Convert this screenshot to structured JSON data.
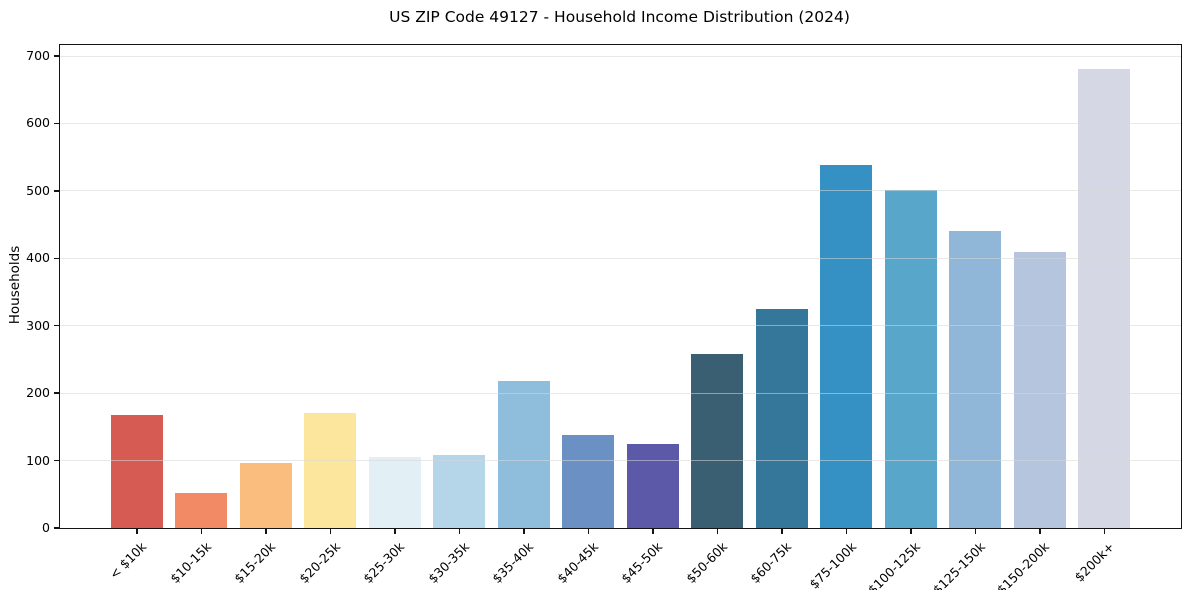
{
  "title": "US ZIP Code 49127 - Household Income Distribution (2024)",
  "chart_data": {
    "type": "bar",
    "title": "US ZIP Code 49127 - Household Income Distribution (2024)",
    "xlabel": "",
    "ylabel": "Households",
    "categories": [
      "< $10k",
      "$10-15k",
      "$15-20k",
      "$20-25k",
      "$25-30k",
      "$30-35k",
      "$35-40k",
      "$40-45k",
      "$45-50k",
      "$50-60k",
      "$60-75k",
      "$75-100k",
      "$100-125k",
      "$125-150k",
      "$150-200k",
      "$200k+"
    ],
    "values": [
      168,
      52,
      96,
      171,
      106,
      108,
      218,
      138,
      125,
      258,
      325,
      539,
      501,
      440,
      409,
      681
    ],
    "bar_colors": [
      "#d65c53",
      "#f28a66",
      "#fbbd7d",
      "#fce59d",
      "#e2f0f6",
      "#b4d6e8",
      "#8fbedd",
      "#6b91c4",
      "#5c5aa8",
      "#3a5e72",
      "#35769b",
      "#3590c3",
      "#59a6cb",
      "#90b7d8",
      "#b4c5dd",
      "#d5d7e5"
    ],
    "yticks": [
      0,
      100,
      200,
      300,
      400,
      500,
      600,
      700
    ],
    "ylim": [
      0,
      716
    ],
    "grid": "horizontal",
    "grid_over_bars": true,
    "legend": "none",
    "background": "#ffffff",
    "xtick_rotation_deg": 45
  }
}
